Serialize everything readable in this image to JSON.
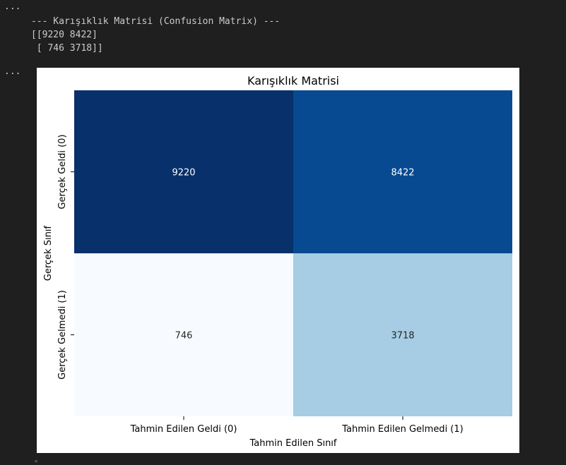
{
  "cells": {
    "ellipsis_top": "...",
    "ellipsis_figure": "..."
  },
  "output": {
    "header": "--- Karışıklık Matrisi (Confusion Matrix) ---",
    "row0": "[[9220 8422]",
    "row1": " [ 746 3718]]"
  },
  "chart_data": {
    "type": "heatmap",
    "title": "Karışıklık Matrisi",
    "xlabel": "Tahmin Edilen Sınıf",
    "ylabel": "Gerçek Sınıf",
    "x_categories": [
      "Tahmin Edilen Geldi (0)",
      "Tahmin Edilen Gelmedi (1)"
    ],
    "y_categories": [
      "Gerçek Geldi (0)",
      "Gerçek Gelmedi (1)"
    ],
    "values": [
      [
        9220,
        8422
      ],
      [
        746,
        3718
      ]
    ],
    "colormap": "Blues",
    "colorbar": false,
    "colors": {
      "9220": "#08306b",
      "8422": "#084a91",
      "746": "#f7fbff",
      "3718": "#a6cde3"
    }
  }
}
